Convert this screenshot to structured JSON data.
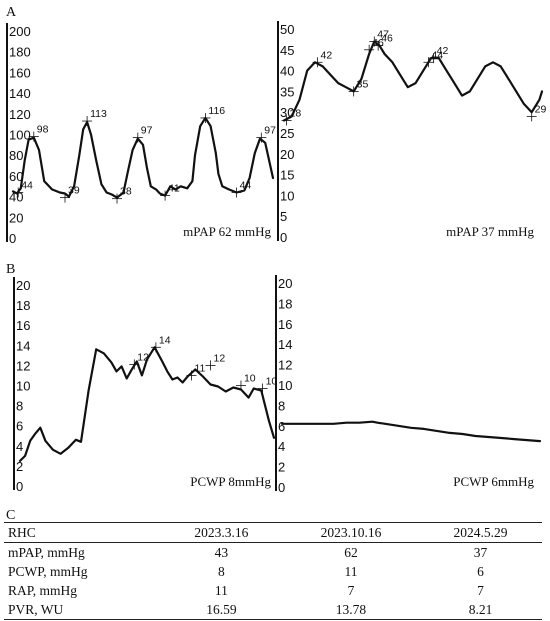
{
  "figure": {
    "panel_a": "A",
    "panel_b": "B",
    "panel_c": "C"
  },
  "chart_data": [
    {
      "type": "line",
      "panel": "A",
      "caption": "mPAP 62 mmHg",
      "ylim": [
        0,
        200
      ],
      "yticks": [
        0,
        20,
        40,
        60,
        80,
        100,
        120,
        140,
        160,
        180,
        200
      ],
      "trace_x": [
        0.0,
        0.015,
        0.03,
        0.045,
        0.06,
        0.08,
        0.1,
        0.12,
        0.15,
        0.18,
        0.2,
        0.215,
        0.235,
        0.255,
        0.27,
        0.285,
        0.3,
        0.32,
        0.34,
        0.36,
        0.38,
        0.4,
        0.425,
        0.44,
        0.46,
        0.48,
        0.5,
        0.515,
        0.53,
        0.55,
        0.565,
        0.585,
        0.605,
        0.625,
        0.645,
        0.67,
        0.69,
        0.7,
        0.72,
        0.74,
        0.76,
        0.78,
        0.79,
        0.805,
        0.83,
        0.86,
        0.89,
        0.91,
        0.93,
        0.95,
        0.97,
        0.985,
        1.0
      ],
      "trace_y": [
        45,
        43,
        48,
        75,
        95,
        97,
        85,
        55,
        47,
        44,
        43,
        40,
        50,
        80,
        105,
        112,
        100,
        75,
        52,
        44,
        42,
        39,
        44,
        62,
        85,
        96,
        90,
        68,
        50,
        47,
        43,
        41,
        50,
        47,
        50,
        48,
        55,
        80,
        108,
        116,
        108,
        82,
        62,
        50,
        47,
        44,
        46,
        58,
        82,
        96,
        92,
        75,
        58
      ],
      "annotations": [
        {
          "label": "98",
          "x": 0.08,
          "y": 98
        },
        {
          "label": "44",
          "x": 0.02,
          "y": 44
        },
        {
          "label": "113",
          "x": 0.285,
          "y": 113
        },
        {
          "label": "39",
          "x": 0.2,
          "y": 39
        },
        {
          "label": "97",
          "x": 0.48,
          "y": 97
        },
        {
          "label": "38",
          "x": 0.4,
          "y": 38
        },
        {
          "label": "41",
          "x": 0.585,
          "y": 41
        },
        {
          "label": "116",
          "x": 0.74,
          "y": 116
        },
        {
          "label": "44",
          "x": 0.86,
          "y": 44
        },
        {
          "label": "97",
          "x": 0.955,
          "y": 97
        }
      ]
    },
    {
      "type": "line",
      "panel": "A",
      "caption": "mPAP 37 mmHg",
      "ylim": [
        0,
        50
      ],
      "yticks": [
        0,
        5,
        10,
        15,
        20,
        25,
        30,
        35,
        40,
        45,
        50
      ],
      "trace_x": [
        0.0,
        0.03,
        0.06,
        0.09,
        0.12,
        0.15,
        0.18,
        0.21,
        0.24,
        0.27,
        0.3,
        0.33,
        0.35,
        0.37,
        0.39,
        0.42,
        0.45,
        0.48,
        0.51,
        0.54,
        0.57,
        0.6,
        0.63,
        0.66,
        0.69,
        0.72,
        0.75,
        0.78,
        0.81,
        0.84,
        0.87,
        0.9,
        0.93,
        0.96,
        0.99,
        1.0
      ],
      "trace_y": [
        28,
        29,
        33,
        40,
        42,
        41,
        39,
        37,
        36,
        35,
        38,
        44,
        47,
        46,
        44,
        42,
        39,
        36,
        37,
        40,
        43,
        43,
        40,
        37,
        34,
        35,
        38,
        41,
        42,
        41,
        38,
        35,
        32,
        30,
        33,
        35
      ],
      "annotations": [
        {
          "label": "28",
          "x": 0.01,
          "y": 28
        },
        {
          "label": "42",
          "x": 0.13,
          "y": 42
        },
        {
          "label": "35",
          "x": 0.27,
          "y": 35
        },
        {
          "label": "47",
          "x": 0.35,
          "y": 47
        },
        {
          "label": "46",
          "x": 0.365,
          "y": 46
        },
        {
          "label": "46",
          "x": 0.33,
          "y": 45
        },
        {
          "label": "42",
          "x": 0.58,
          "y": 43
        },
        {
          "label": "44",
          "x": 0.56,
          "y": 42
        },
        {
          "label": "29",
          "x": 0.96,
          "y": 29
        }
      ]
    },
    {
      "type": "line",
      "panel": "B",
      "caption": "PCWP 8mmHg",
      "ylim": [
        0,
        20
      ],
      "yticks": [
        0,
        2,
        4,
        6,
        8,
        10,
        12,
        14,
        16,
        18,
        20
      ],
      "trace_x": [
        0.0,
        0.02,
        0.04,
        0.06,
        0.08,
        0.1,
        0.13,
        0.16,
        0.19,
        0.22,
        0.24,
        0.27,
        0.3,
        0.33,
        0.36,
        0.38,
        0.4,
        0.42,
        0.44,
        0.46,
        0.48,
        0.5,
        0.53,
        0.56,
        0.58,
        0.6,
        0.62,
        0.64,
        0.66,
        0.69,
        0.72,
        0.75,
        0.78,
        0.81,
        0.84,
        0.87,
        0.9,
        0.92,
        0.95,
        0.98,
        1.0
      ],
      "trace_y": [
        2.5,
        3.0,
        4.5,
        5.2,
        5.8,
        4.5,
        3.6,
        3.2,
        3.8,
        4.6,
        4.4,
        9.5,
        13.6,
        13.2,
        12.3,
        11.4,
        11.9,
        10.7,
        11.6,
        12.4,
        11.0,
        12.6,
        13.8,
        12.4,
        11.4,
        10.6,
        10.8,
        10.3,
        10.9,
        11.6,
        10.9,
        10.1,
        9.9,
        9.4,
        9.8,
        9.6,
        8.8,
        9.7,
        9.5,
        6.5,
        4.8
      ],
      "annotations": [
        {
          "label": "12",
          "x": 0.45,
          "y": 12.1
        },
        {
          "label": "14",
          "x": 0.535,
          "y": 13.8
        },
        {
          "label": "11",
          "x": 0.675,
          "y": 11.0
        },
        {
          "label": "12",
          "x": 0.75,
          "y": 12.0
        },
        {
          "label": "10",
          "x": 0.87,
          "y": 10.0
        },
        {
          "label": "10",
          "x": 0.955,
          "y": 9.7
        }
      ]
    },
    {
      "type": "line",
      "panel": "B",
      "caption": "PCWP 6mmHg",
      "ylim": [
        0,
        20
      ],
      "yticks": [
        0,
        2,
        4,
        6,
        8,
        10,
        12,
        14,
        16,
        18,
        20
      ],
      "trace_x": [
        0.0,
        0.1,
        0.2,
        0.25,
        0.3,
        0.35,
        0.37,
        0.4,
        0.45,
        0.5,
        0.55,
        0.6,
        0.65,
        0.7,
        0.75,
        0.8,
        0.85,
        0.9,
        0.95,
        1.0
      ],
      "trace_y": [
        6.2,
        6.2,
        6.2,
        6.3,
        6.3,
        6.4,
        6.3,
        6.2,
        6.0,
        5.8,
        5.7,
        5.5,
        5.3,
        5.2,
        5.0,
        4.9,
        4.8,
        4.7,
        4.6,
        4.5
      ],
      "annotations": []
    }
  ],
  "table": {
    "header": [
      "RHC",
      "2023.3.16",
      "2023.10.16",
      "2024.5.29"
    ],
    "rows": [
      {
        "label": "mPAP, mmHg",
        "values": [
          "43",
          "62",
          "37"
        ]
      },
      {
        "label": "PCWP, mmHg",
        "values": [
          "8",
          "11",
          "6"
        ]
      },
      {
        "label": "RAP, mmHg",
        "values": [
          "11",
          "7",
          "7"
        ]
      },
      {
        "label": "PVR, WU",
        "values": [
          "16.59",
          "13.78",
          "8.21"
        ]
      }
    ]
  }
}
